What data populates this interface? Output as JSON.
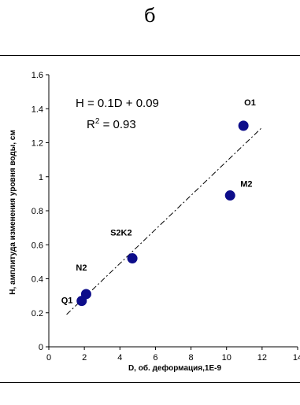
{
  "panel_letter": "б",
  "chart_data": {
    "type": "scatter",
    "xlabel": "D, об. деформация,1E-9",
    "ylabel": "Н, амплитуда изменения уровня воды, см",
    "xlim": [
      0,
      14
    ],
    "ylim": [
      0,
      1.6
    ],
    "x_ticks": [
      0,
      2,
      4,
      6,
      8,
      10,
      12,
      14
    ],
    "x_tick_labels": [
      "0",
      "2",
      "4",
      "6",
      "8",
      "10",
      "12",
      "14"
    ],
    "y_ticks": [
      0,
      0.2,
      0.4,
      0.6,
      0.8,
      1.0,
      1.2,
      1.4,
      1.6
    ],
    "y_tick_labels": [
      "0",
      "0.2",
      "0.4",
      "0.6",
      "0.8",
      "1",
      "1.2",
      "1.4",
      "1.6"
    ],
    "grid": false,
    "points": [
      {
        "label": "Q1",
        "x": 1.85,
        "y": 0.27
      },
      {
        "label": "N2",
        "x": 2.1,
        "y": 0.31
      },
      {
        "label": "S2K2",
        "x": 4.7,
        "y": 0.52
      },
      {
        "label": "M2",
        "x": 10.2,
        "y": 0.89
      },
      {
        "label": "O1",
        "x": 10.95,
        "y": 1.3
      }
    ],
    "trendline": {
      "slope": 0.1,
      "intercept": 0.09,
      "x_start": 1.0,
      "x_end": 12.0,
      "style": "dash-dot"
    },
    "equation": "H = 0.1D + 0.09",
    "r2_prefix": "R",
    "r2_sup": "2",
    "r2_value": " = 0.93",
    "colors": {
      "marker": "#0d0d8a",
      "axes": "#000000",
      "trendline": "#000000"
    }
  }
}
